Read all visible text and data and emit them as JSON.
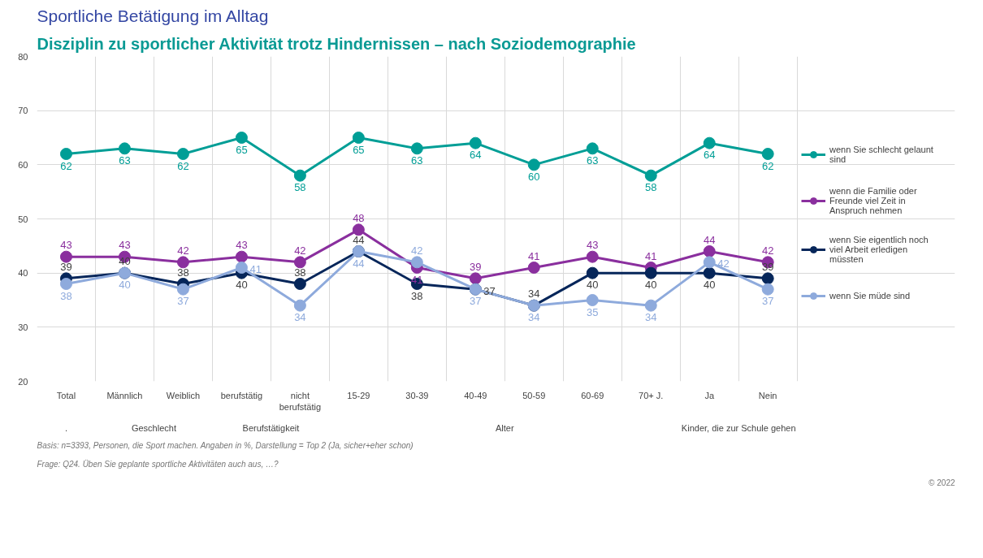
{
  "chart_data": {
    "type": "line",
    "title": "Sportliche Betätigung im Alltag",
    "subtitle": "Disziplin zu sportlicher Aktivität trotz Hindernissen – nach Soziodemographie",
    "categories": [
      "Total",
      "Männlich",
      "Weiblich",
      "berufstätig",
      "nicht berufstätig",
      "15-29",
      "30-39",
      "40-49",
      "50-59",
      "60-69",
      "70+ J.",
      "Ja",
      "Nein"
    ],
    "series": [
      {
        "name": "wenn Sie schlecht gelaunt sind",
        "color": "#009e96",
        "values": [
          62,
          63,
          62,
          65,
          58,
          65,
          63,
          64,
          60,
          63,
          58,
          64,
          62
        ]
      },
      {
        "name": "wenn die Familie oder Freunde viel Zeit in Anspruch nehmen",
        "color": "#8a2f9e",
        "values": [
          43,
          43,
          42,
          43,
          42,
          48,
          41,
          39,
          41,
          43,
          41,
          44,
          42
        ]
      },
      {
        "name": "wenn Sie eigentlich noch viel Arbeit erledigen müssten",
        "color": "#06265a",
        "values": [
          39,
          40,
          38,
          40,
          38,
          44,
          38,
          37,
          34,
          40,
          40,
          40,
          39
        ]
      },
      {
        "name": "wenn Sie müde sind",
        "color": "#8eaadc",
        "values": [
          38,
          40,
          37,
          41,
          34,
          44,
          42,
          37,
          34,
          35,
          34,
          42,
          37
        ]
      }
    ],
    "ylim": [
      20,
      80
    ],
    "yticks": [
      20,
      30,
      40,
      50,
      60,
      70,
      80
    ],
    "grid": true,
    "legend": "right",
    "marker": "circle",
    "line_style": "solid",
    "data_labels": true,
    "annotations": [
      ".",
      "Geschlecht",
      "Berufstätigkeit",
      "Alter",
      "Kinder, die zur Schule gehen",
      "Frage: Q24. Üben Sie geplante sportliche Aktivitäten auch aus, …?",
      "Basis: n=3393, Personen, die Sport machen. Angaben in %, Darstellung = Top 2 (Ja, sicher+eher schon)",
      "© 2022"
    ]
  }
}
